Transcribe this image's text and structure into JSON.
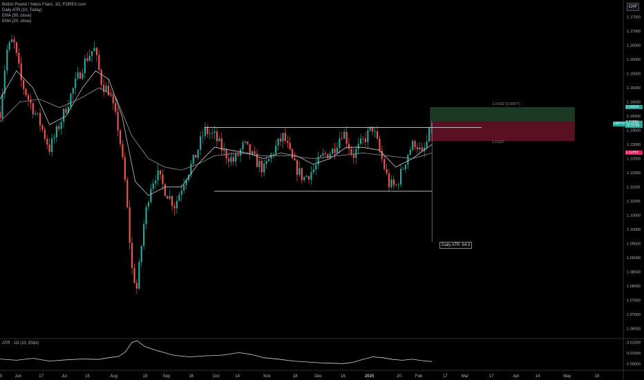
{
  "legend": {
    "symbol": "British Pound / Swiss Franc, 1D, FOREX.com",
    "indicator1": "Daily ATR (10, Today)",
    "indicator2": "EMA (50, close)",
    "indicator3": "EMA (20, close)"
  },
  "currency_badge": "CHF",
  "atr_pane_label": "ATR · 1D (10, EMA)",
  "atr_box_label": "Daily ATR: 64.3",
  "symbol_tag": "GBPCHF",
  "zone_labels": {
    "target": "1.14332 (0.00877)",
    "stop": "1.13127"
  },
  "price_tags": [
    {
      "label": "1.14314",
      "price": 1.14314,
      "color": "#26a69a"
    },
    {
      "label": "1.13794",
      "price": 1.13794,
      "color": "#2a2e39"
    },
    {
      "label": "1.13769",
      "price": 1.13769,
      "color": "#26a69a"
    },
    {
      "label": "15:23:56",
      "price": 1.1367,
      "color": "#26a69a"
    },
    {
      "label": "1.12707",
      "price": 1.12707,
      "color": "#e91e63"
    }
  ],
  "colors": {
    "up": "#26a69a",
    "down": "#ef5350",
    "ema": "#c7c7c7",
    "target_zone": "#1b3a24",
    "stop_zone": "#5a0f22"
  },
  "chart_data": {
    "type": "candlestick",
    "symbol": "GBPCHF",
    "timeframe": "1D",
    "y_axis": {
      "range": [
        1.062,
        1.181
      ],
      "ticks": [
        "1.17500",
        "1.17000",
        "1.16500",
        "1.16000",
        "1.15500",
        "1.15000",
        "1.14500",
        "1.14000",
        "1.13500",
        "1.13000",
        "1.12500",
        "1.12000",
        "1.11500",
        "1.11000",
        "1.10500",
        "1.10000",
        "1.09500",
        "1.09000",
        "1.08500",
        "1.08000",
        "1.07500",
        "1.07000",
        "1.06500"
      ]
    },
    "x_axis": {
      "ticks": [
        {
          "label": "20",
          "day": 0
        },
        {
          "label": "Jun",
          "day": 11
        },
        {
          "label": "17",
          "day": 25
        },
        {
          "label": "Jul",
          "day": 39
        },
        {
          "label": "15",
          "day": 53
        },
        {
          "label": "Aug",
          "day": 69
        },
        {
          "label": "19",
          "day": 88
        },
        {
          "label": "Sep",
          "day": 101
        },
        {
          "label": "16",
          "day": 116
        },
        {
          "label": "Oct",
          "day": 131
        },
        {
          "label": "14",
          "day": 144
        },
        {
          "label": "Nov",
          "day": 162
        },
        {
          "label": "18",
          "day": 179
        },
        {
          "label": "Dec",
          "day": 193
        },
        {
          "label": "16",
          "day": 208
        },
        {
          "label": "2025",
          "day": 224
        },
        {
          "label": "20",
          "day": 242
        },
        {
          "label": "Feb",
          "day": 254
        },
        {
          "label": "17",
          "day": 270
        },
        {
          "label": "Mar",
          "day": 282
        },
        {
          "label": "17",
          "day": 298
        },
        {
          "label": "Apr",
          "day": 313
        },
        {
          "label": "14",
          "day": 326
        },
        {
          "label": "May",
          "day": 344
        },
        {
          "label": "19",
          "day": 362
        }
      ],
      "range_days": [
        0,
        378
      ]
    },
    "key_points": [
      {
        "day": 0,
        "price": 1.1415
      },
      {
        "day": 4,
        "price": 1.163
      },
      {
        "day": 8,
        "price": 1.167
      },
      {
        "day": 13,
        "price": 1.152
      },
      {
        "day": 18,
        "price": 1.145
      },
      {
        "day": 24,
        "price": 1.138
      },
      {
        "day": 30,
        "price": 1.1285
      },
      {
        "day": 34,
        "price": 1.134
      },
      {
        "day": 40,
        "price": 1.143
      },
      {
        "day": 46,
        "price": 1.152
      },
      {
        "day": 52,
        "price": 1.16
      },
      {
        "day": 57,
        "price": 1.164
      },
      {
        "day": 62,
        "price": 1.151
      },
      {
        "day": 66,
        "price": 1.149
      },
      {
        "day": 72,
        "price": 1.135
      },
      {
        "day": 76,
        "price": 1.116
      },
      {
        "day": 80,
        "price": 1.086
      },
      {
        "day": 83,
        "price": 1.079
      },
      {
        "day": 87,
        "price": 1.101
      },
      {
        "day": 91,
        "price": 1.115
      },
      {
        "day": 95,
        "price": 1.12
      },
      {
        "day": 100,
        "price": 1.114
      },
      {
        "day": 106,
        "price": 1.1085
      },
      {
        "day": 112,
        "price": 1.118
      },
      {
        "day": 118,
        "price": 1.125
      },
      {
        "day": 124,
        "price": 1.135
      },
      {
        "day": 130,
        "price": 1.133
      },
      {
        "day": 136,
        "price": 1.127
      },
      {
        "day": 142,
        "price": 1.124
      },
      {
        "day": 148,
        "price": 1.13
      },
      {
        "day": 154,
        "price": 1.125
      },
      {
        "day": 160,
        "price": 1.121
      },
      {
        "day": 166,
        "price": 1.128
      },
      {
        "day": 172,
        "price": 1.133
      },
      {
        "day": 178,
        "price": 1.123
      },
      {
        "day": 184,
        "price": 1.118
      },
      {
        "day": 190,
        "price": 1.121
      },
      {
        "day": 196,
        "price": 1.126
      },
      {
        "day": 202,
        "price": 1.128
      },
      {
        "day": 208,
        "price": 1.135
      },
      {
        "day": 214,
        "price": 1.126
      },
      {
        "day": 220,
        "price": 1.131
      },
      {
        "day": 226,
        "price": 1.136
      },
      {
        "day": 232,
        "price": 1.124
      },
      {
        "day": 236,
        "price": 1.116
      },
      {
        "day": 240,
        "price": 1.115
      },
      {
        "day": 244,
        "price": 1.121
      },
      {
        "day": 248,
        "price": 1.128
      },
      {
        "day": 252,
        "price": 1.131
      },
      {
        "day": 256,
        "price": 1.126
      },
      {
        "day": 259,
        "price": 1.131
      },
      {
        "day": 262,
        "price": 1.1377
      }
    ],
    "ema20_points": [
      {
        "day": 0,
        "price": 1.146
      },
      {
        "day": 10,
        "price": 1.156
      },
      {
        "day": 20,
        "price": 1.15
      },
      {
        "day": 30,
        "price": 1.137
      },
      {
        "day": 40,
        "price": 1.14
      },
      {
        "day": 50,
        "price": 1.15
      },
      {
        "day": 58,
        "price": 1.156
      },
      {
        "day": 66,
        "price": 1.153
      },
      {
        "day": 74,
        "price": 1.14
      },
      {
        "day": 82,
        "price": 1.117
      },
      {
        "day": 90,
        "price": 1.112
      },
      {
        "day": 100,
        "price": 1.115
      },
      {
        "day": 110,
        "price": 1.115
      },
      {
        "day": 120,
        "price": 1.123
      },
      {
        "day": 130,
        "price": 1.129
      },
      {
        "day": 140,
        "price": 1.128
      },
      {
        "day": 150,
        "price": 1.127
      },
      {
        "day": 160,
        "price": 1.125
      },
      {
        "day": 170,
        "price": 1.127
      },
      {
        "day": 180,
        "price": 1.126
      },
      {
        "day": 190,
        "price": 1.123
      },
      {
        "day": 200,
        "price": 1.125
      },
      {
        "day": 210,
        "price": 1.129
      },
      {
        "day": 220,
        "price": 1.129
      },
      {
        "day": 230,
        "price": 1.128
      },
      {
        "day": 240,
        "price": 1.122
      },
      {
        "day": 250,
        "price": 1.125
      },
      {
        "day": 262,
        "price": 1.13
      }
    ],
    "ema50_points": [
      {
        "day": 0,
        "price": 1.138
      },
      {
        "day": 12,
        "price": 1.145
      },
      {
        "day": 24,
        "price": 1.146
      },
      {
        "day": 36,
        "price": 1.143
      },
      {
        "day": 48,
        "price": 1.146
      },
      {
        "day": 60,
        "price": 1.15
      },
      {
        "day": 70,
        "price": 1.147
      },
      {
        "day": 80,
        "price": 1.133
      },
      {
        "day": 90,
        "price": 1.125
      },
      {
        "day": 100,
        "price": 1.122
      },
      {
        "day": 110,
        "price": 1.121
      },
      {
        "day": 120,
        "price": 1.123
      },
      {
        "day": 130,
        "price": 1.126
      },
      {
        "day": 145,
        "price": 1.127
      },
      {
        "day": 160,
        "price": 1.126
      },
      {
        "day": 175,
        "price": 1.126
      },
      {
        "day": 190,
        "price": 1.125
      },
      {
        "day": 205,
        "price": 1.126
      },
      {
        "day": 220,
        "price": 1.127
      },
      {
        "day": 235,
        "price": 1.126
      },
      {
        "day": 250,
        "price": 1.125
      },
      {
        "day": 262,
        "price": 1.127
      }
    ],
    "range_lines": [
      {
        "from_day": 124,
        "to_day": 292,
        "price": 1.136
      },
      {
        "from_day": 130,
        "to_day": 262,
        "price": 1.1135
      }
    ],
    "atr_line_x_day": 262,
    "target_zone": {
      "from_day": 262,
      "to_day": 362,
      "top": 1.1432,
      "bottom": 1.138
    },
    "stop_zone": {
      "from_day": 262,
      "to_day": 362,
      "top": 1.138,
      "bottom": 1.1312
    },
    "atr": {
      "y_axis": {
        "range": [
          0.0025,
          0.0165
        ],
        "ticks": [
          "0.01500",
          "0.01000",
          "0.00500"
        ]
      },
      "points": [
        {
          "day": 0,
          "value": 0.0072
        },
        {
          "day": 10,
          "value": 0.0066
        },
        {
          "day": 20,
          "value": 0.0075
        },
        {
          "day": 30,
          "value": 0.0062
        },
        {
          "day": 40,
          "value": 0.0068
        },
        {
          "day": 50,
          "value": 0.0072
        },
        {
          "day": 60,
          "value": 0.007
        },
        {
          "day": 66,
          "value": 0.0078
        },
        {
          "day": 72,
          "value": 0.0084
        },
        {
          "day": 76,
          "value": 0.0105
        },
        {
          "day": 80,
          "value": 0.015
        },
        {
          "day": 83,
          "value": 0.0158
        },
        {
          "day": 88,
          "value": 0.013
        },
        {
          "day": 95,
          "value": 0.0112
        },
        {
          "day": 105,
          "value": 0.009
        },
        {
          "day": 115,
          "value": 0.0082
        },
        {
          "day": 125,
          "value": 0.0087
        },
        {
          "day": 135,
          "value": 0.009
        },
        {
          "day": 145,
          "value": 0.0102
        },
        {
          "day": 152,
          "value": 0.0094
        },
        {
          "day": 160,
          "value": 0.0078
        },
        {
          "day": 170,
          "value": 0.007
        },
        {
          "day": 178,
          "value": 0.0062
        },
        {
          "day": 186,
          "value": 0.0058
        },
        {
          "day": 194,
          "value": 0.0054
        },
        {
          "day": 200,
          "value": 0.0052
        },
        {
          "day": 208,
          "value": 0.005
        },
        {
          "day": 214,
          "value": 0.0056
        },
        {
          "day": 220,
          "value": 0.007
        },
        {
          "day": 226,
          "value": 0.0082
        },
        {
          "day": 232,
          "value": 0.0078
        },
        {
          "day": 238,
          "value": 0.007
        },
        {
          "day": 244,
          "value": 0.0066
        },
        {
          "day": 250,
          "value": 0.0071
        },
        {
          "day": 256,
          "value": 0.0064
        },
        {
          "day": 262,
          "value": 0.006
        }
      ]
    }
  }
}
